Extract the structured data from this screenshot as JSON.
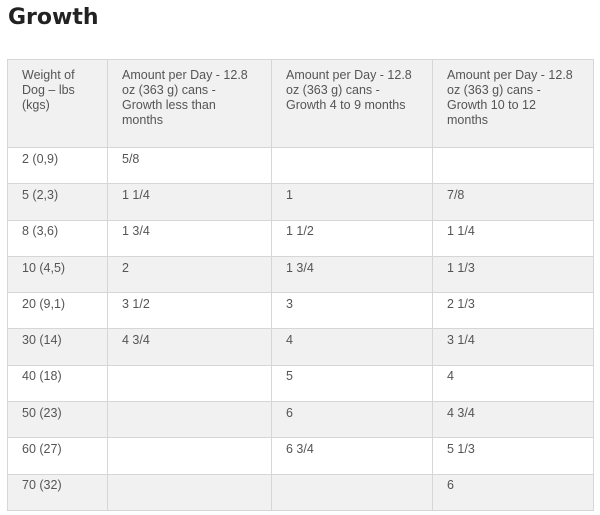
{
  "page": {
    "title": "Growth"
  },
  "table": {
    "headers": [
      "Weight of Dog – lbs (kgs)",
      "Amount per Day - 12.8 oz (363 g) cans - Growth less than months",
      "Amount per Day - 12.8 oz (363 g) cans - Growth 4 to 9 months",
      "Amount per Day - 12.8 oz (363 g) cans - Growth 10 to 12 months"
    ],
    "rows": [
      [
        "2 (0,9)",
        "5/8",
        "",
        ""
      ],
      [
        "5 (2,3)",
        "1 1/4",
        "1",
        "7/8"
      ],
      [
        "8 (3,6)",
        "1 3/4",
        "1 1/2",
        "1 1/4"
      ],
      [
        "10 (4,5)",
        "2",
        "1 3/4",
        "1 1/3"
      ],
      [
        "20 (9,1)",
        "3 1/2",
        "3",
        "2 1/3"
      ],
      [
        "30 (14)",
        "4 3/4",
        "4",
        "3 1/4"
      ],
      [
        "40 (18)",
        "",
        "5",
        "4"
      ],
      [
        "50 (23)",
        "",
        "6",
        "4 3/4"
      ],
      [
        "60 (27)",
        "",
        "6 3/4",
        "5 1/3"
      ],
      [
        "70 (32)",
        "",
        "",
        "6"
      ]
    ]
  }
}
